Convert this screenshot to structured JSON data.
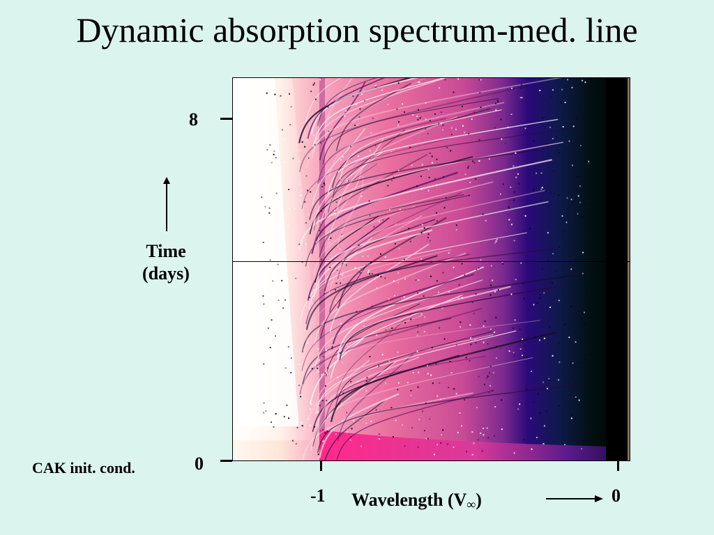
{
  "title": "Dynamic absorption spectrum-med. line",
  "y_axis": {
    "label_line1": "Time",
    "label_line2": "(days)",
    "ticks": [
      "8",
      "0"
    ]
  },
  "x_axis": {
    "label_main": "Wavelength (V",
    "label_sub": "∞",
    "label_close": ")",
    "ticks": [
      "-1",
      "0"
    ]
  },
  "annotation": "CAK init. cond.",
  "icons": {
    "time_arrow": "arrow-up-icon",
    "wavelength_arrow": "arrow-right-icon"
  },
  "colors": {
    "background": "#dcf4ee",
    "absorption_light": "#ffffff",
    "absorption_mid": "#e8508a",
    "absorption_deep": "#1a0060",
    "absorption_full": "#000000"
  }
}
